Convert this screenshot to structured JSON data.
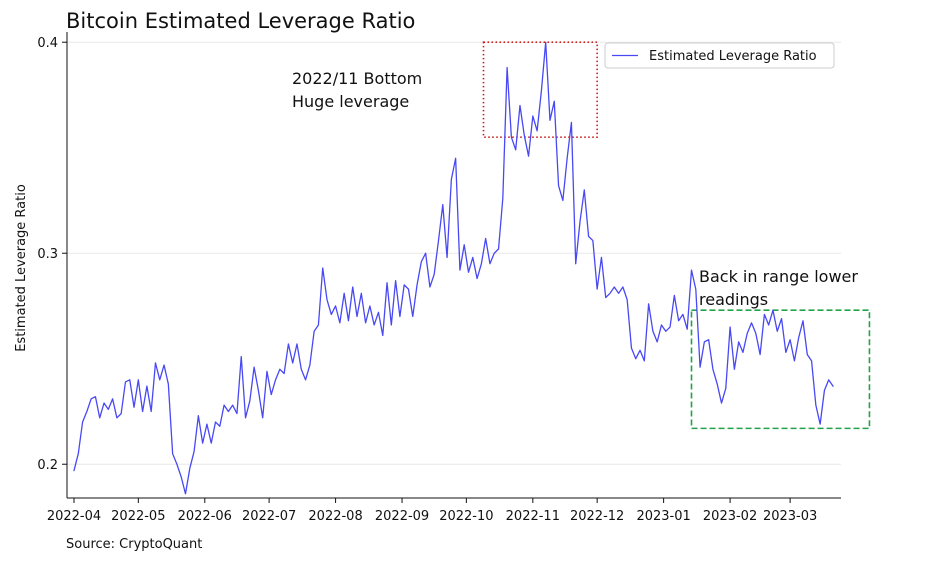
{
  "source_note": "Source: CryptoQuant",
  "colors": {
    "line": "#4848f5",
    "grid": "#e8e8e8",
    "bottom_box": "#cc1d1d",
    "range_box": "#22a34b"
  },
  "chart_data": {
    "type": "line",
    "title": "Bitcoin Estimated Leverage Ratio",
    "xlabel": "",
    "ylabel": "Estimated Leverage Ratio",
    "x_ticks": [
      "2022-04",
      "2022-05",
      "2022-06",
      "2022-07",
      "2022-08",
      "2022-09",
      "2022-10",
      "2022-11",
      "2022-12",
      "2023-01",
      "2023-02",
      "2023-03"
    ],
    "y_ticks": [
      0.2,
      0.3,
      0.4
    ],
    "xlim": [
      "2022-04-01",
      "2023-03-21"
    ],
    "ylim": [
      0.184,
      0.402
    ],
    "grid": "horizontal",
    "legend": {
      "position": "top-right",
      "entries": [
        "Estimated Leverage Ratio"
      ]
    },
    "series": [
      {
        "name": "Estimated Leverage Ratio",
        "points": [
          [
            "2022-04-01",
            0.197
          ],
          [
            "2022-04-03",
            0.205
          ],
          [
            "2022-04-05",
            0.22
          ],
          [
            "2022-04-07",
            0.225
          ],
          [
            "2022-04-09",
            0.231
          ],
          [
            "2022-04-11",
            0.232
          ],
          [
            "2022-04-13",
            0.222
          ],
          [
            "2022-04-15",
            0.229
          ],
          [
            "2022-04-17",
            0.226
          ],
          [
            "2022-04-19",
            0.231
          ],
          [
            "2022-04-21",
            0.222
          ],
          [
            "2022-04-23",
            0.224
          ],
          [
            "2022-04-25",
            0.239
          ],
          [
            "2022-04-27",
            0.24
          ],
          [
            "2022-04-29",
            0.227
          ],
          [
            "2022-05-01",
            0.24
          ],
          [
            "2022-05-03",
            0.225
          ],
          [
            "2022-05-05",
            0.237
          ],
          [
            "2022-05-07",
            0.225
          ],
          [
            "2022-05-09",
            0.248
          ],
          [
            "2022-05-11",
            0.24
          ],
          [
            "2022-05-13",
            0.247
          ],
          [
            "2022-05-15",
            0.238
          ],
          [
            "2022-05-17",
            0.205
          ],
          [
            "2022-05-19",
            0.2
          ],
          [
            "2022-05-21",
            0.194
          ],
          [
            "2022-05-23",
            0.186
          ],
          [
            "2022-05-25",
            0.198
          ],
          [
            "2022-05-27",
            0.206
          ],
          [
            "2022-05-29",
            0.223
          ],
          [
            "2022-05-31",
            0.21
          ],
          [
            "2022-06-02",
            0.219
          ],
          [
            "2022-06-04",
            0.21
          ],
          [
            "2022-06-06",
            0.22
          ],
          [
            "2022-06-08",
            0.218
          ],
          [
            "2022-06-10",
            0.228
          ],
          [
            "2022-06-12",
            0.225
          ],
          [
            "2022-06-14",
            0.228
          ],
          [
            "2022-06-16",
            0.224
          ],
          [
            "2022-06-18",
            0.251
          ],
          [
            "2022-06-20",
            0.222
          ],
          [
            "2022-06-22",
            0.23
          ],
          [
            "2022-06-24",
            0.246
          ],
          [
            "2022-06-26",
            0.235
          ],
          [
            "2022-06-28",
            0.222
          ],
          [
            "2022-06-30",
            0.244
          ],
          [
            "2022-07-02",
            0.233
          ],
          [
            "2022-07-04",
            0.24
          ],
          [
            "2022-07-06",
            0.245
          ],
          [
            "2022-07-08",
            0.243
          ],
          [
            "2022-07-10",
            0.257
          ],
          [
            "2022-07-12",
            0.248
          ],
          [
            "2022-07-14",
            0.257
          ],
          [
            "2022-07-16",
            0.245
          ],
          [
            "2022-07-18",
            0.24
          ],
          [
            "2022-07-20",
            0.247
          ],
          [
            "2022-07-22",
            0.263
          ],
          [
            "2022-07-24",
            0.266
          ],
          [
            "2022-07-26",
            0.293
          ],
          [
            "2022-07-28",
            0.278
          ],
          [
            "2022-07-30",
            0.271
          ],
          [
            "2022-08-01",
            0.275
          ],
          [
            "2022-08-03",
            0.267
          ],
          [
            "2022-08-05",
            0.281
          ],
          [
            "2022-08-07",
            0.268
          ],
          [
            "2022-08-09",
            0.284
          ],
          [
            "2022-08-11",
            0.27
          ],
          [
            "2022-08-13",
            0.281
          ],
          [
            "2022-08-15",
            0.267
          ],
          [
            "2022-08-17",
            0.275
          ],
          [
            "2022-08-19",
            0.266
          ],
          [
            "2022-08-21",
            0.272
          ],
          [
            "2022-08-23",
            0.261
          ],
          [
            "2022-08-25",
            0.286
          ],
          [
            "2022-08-27",
            0.266
          ],
          [
            "2022-08-29",
            0.287
          ],
          [
            "2022-08-31",
            0.27
          ],
          [
            "2022-09-02",
            0.285
          ],
          [
            "2022-09-04",
            0.283
          ],
          [
            "2022-09-06",
            0.27
          ],
          [
            "2022-09-08",
            0.285
          ],
          [
            "2022-09-10",
            0.296
          ],
          [
            "2022-09-12",
            0.3
          ],
          [
            "2022-09-14",
            0.284
          ],
          [
            "2022-09-16",
            0.29
          ],
          [
            "2022-09-18",
            0.306
          ],
          [
            "2022-09-20",
            0.323
          ],
          [
            "2022-09-22",
            0.298
          ],
          [
            "2022-09-24",
            0.335
          ],
          [
            "2022-09-26",
            0.345
          ],
          [
            "2022-09-28",
            0.292
          ],
          [
            "2022-09-30",
            0.304
          ],
          [
            "2022-10-02",
            0.291
          ],
          [
            "2022-10-04",
            0.298
          ],
          [
            "2022-10-06",
            0.288
          ],
          [
            "2022-10-08",
            0.295
          ],
          [
            "2022-10-10",
            0.307
          ],
          [
            "2022-10-12",
            0.295
          ],
          [
            "2022-10-14",
            0.3
          ],
          [
            "2022-10-16",
            0.302
          ],
          [
            "2022-10-18",
            0.326
          ],
          [
            "2022-10-20",
            0.388
          ],
          [
            "2022-10-22",
            0.355
          ],
          [
            "2022-10-24",
            0.349
          ],
          [
            "2022-10-26",
            0.37
          ],
          [
            "2022-10-28",
            0.356
          ],
          [
            "2022-10-30",
            0.346
          ],
          [
            "2022-11-01",
            0.365
          ],
          [
            "2022-11-03",
            0.358
          ],
          [
            "2022-11-05",
            0.377
          ],
          [
            "2022-11-07",
            0.4
          ],
          [
            "2022-11-09",
            0.363
          ],
          [
            "2022-11-11",
            0.372
          ],
          [
            "2022-11-13",
            0.332
          ],
          [
            "2022-11-15",
            0.325
          ],
          [
            "2022-11-17",
            0.345
          ],
          [
            "2022-11-19",
            0.362
          ],
          [
            "2022-11-21",
            0.295
          ],
          [
            "2022-11-23",
            0.315
          ],
          [
            "2022-11-25",
            0.33
          ],
          [
            "2022-11-27",
            0.308
          ],
          [
            "2022-11-29",
            0.306
          ],
          [
            "2022-12-01",
            0.283
          ],
          [
            "2022-12-03",
            0.298
          ],
          [
            "2022-12-05",
            0.279
          ],
          [
            "2022-12-07",
            0.281
          ],
          [
            "2022-12-09",
            0.284
          ],
          [
            "2022-12-11",
            0.281
          ],
          [
            "2022-12-13",
            0.284
          ],
          [
            "2022-12-15",
            0.278
          ],
          [
            "2022-12-17",
            0.255
          ],
          [
            "2022-12-19",
            0.25
          ],
          [
            "2022-12-21",
            0.254
          ],
          [
            "2022-12-23",
            0.249
          ],
          [
            "2022-12-25",
            0.276
          ],
          [
            "2022-12-27",
            0.263
          ],
          [
            "2022-12-29",
            0.258
          ],
          [
            "2022-12-31",
            0.266
          ],
          [
            "2023-01-02",
            0.263
          ],
          [
            "2023-01-04",
            0.265
          ],
          [
            "2023-01-06",
            0.28
          ],
          [
            "2023-01-08",
            0.268
          ],
          [
            "2023-01-10",
            0.271
          ],
          [
            "2023-01-12",
            0.264
          ],
          [
            "2023-01-14",
            0.292
          ],
          [
            "2023-01-16",
            0.283
          ],
          [
            "2023-01-18",
            0.246
          ],
          [
            "2023-01-20",
            0.258
          ],
          [
            "2023-01-22",
            0.259
          ],
          [
            "2023-01-24",
            0.245
          ],
          [
            "2023-01-26",
            0.238
          ],
          [
            "2023-01-28",
            0.229
          ],
          [
            "2023-01-30",
            0.236
          ],
          [
            "2023-02-01",
            0.265
          ],
          [
            "2023-02-03",
            0.245
          ],
          [
            "2023-02-05",
            0.258
          ],
          [
            "2023-02-07",
            0.253
          ],
          [
            "2023-02-09",
            0.262
          ],
          [
            "2023-02-11",
            0.267
          ],
          [
            "2023-02-13",
            0.262
          ],
          [
            "2023-02-15",
            0.252
          ],
          [
            "2023-02-17",
            0.271
          ],
          [
            "2023-02-19",
            0.266
          ],
          [
            "2023-02-21",
            0.273
          ],
          [
            "2023-02-23",
            0.263
          ],
          [
            "2023-02-25",
            0.269
          ],
          [
            "2023-02-27",
            0.253
          ],
          [
            "2023-03-01",
            0.259
          ],
          [
            "2023-03-03",
            0.249
          ],
          [
            "2023-03-05",
            0.26
          ],
          [
            "2023-03-07",
            0.268
          ],
          [
            "2023-03-09",
            0.252
          ],
          [
            "2023-03-11",
            0.249
          ],
          [
            "2023-03-13",
            0.228
          ],
          [
            "2023-03-15",
            0.219
          ],
          [
            "2023-03-17",
            0.235
          ],
          [
            "2023-03-19",
            0.24
          ],
          [
            "2023-03-21",
            0.237
          ]
        ]
      }
    ],
    "annotations": [
      {
        "lines": [
          "2022/11 Bottom",
          "Huge leverage"
        ],
        "box": {
          "x0": "2022-10-09",
          "x1": "2022-12-01",
          "y0": 0.355,
          "y1": 0.4
        },
        "style": "dotted",
        "color_key": "bottom_box"
      },
      {
        "lines": [
          "Back in range lower",
          "readings"
        ],
        "box": {
          "x0": "2023-01-14",
          "x1": "2023-04-07",
          "y0": 0.217,
          "y1": 0.273
        },
        "style": "dashed",
        "color_key": "range_box"
      }
    ]
  }
}
